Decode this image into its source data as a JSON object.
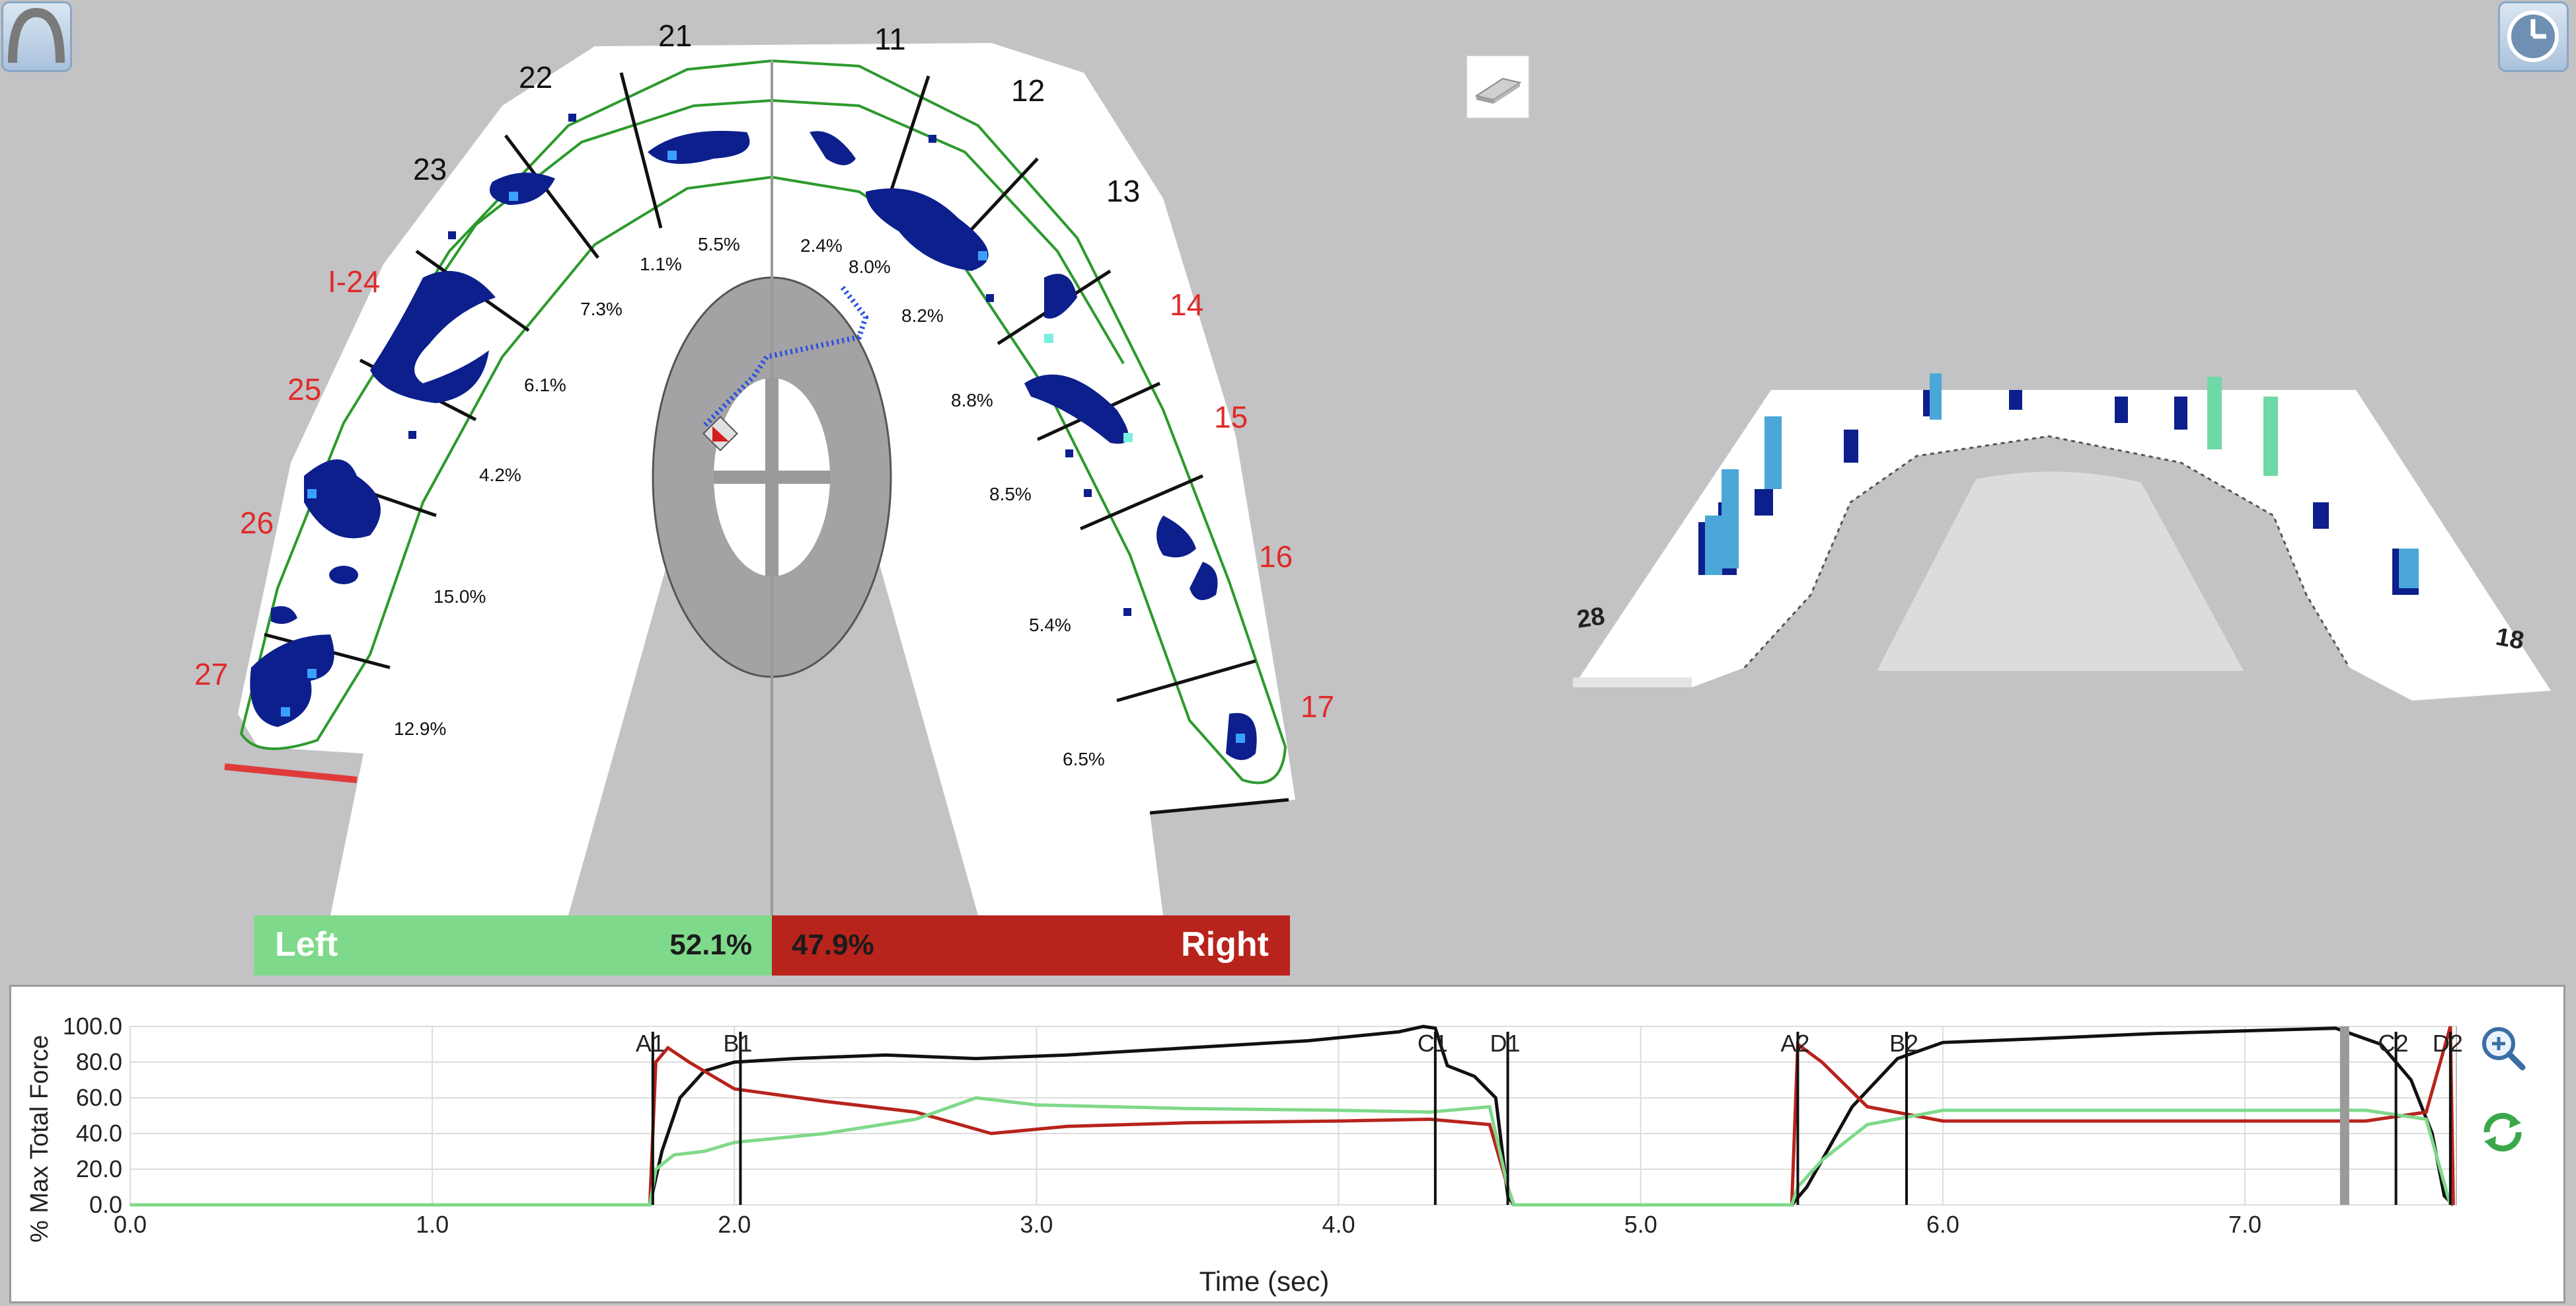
{
  "window": {
    "arch_button": "arch-icon",
    "clock_button": "clock-icon",
    "view_toggle_button": "3d-arch-icon"
  },
  "arch": {
    "tooth_labels": [
      {
        "id": "21",
        "color": "#111111"
      },
      {
        "id": "22",
        "color": "#111111"
      },
      {
        "id": "23",
        "color": "#111111"
      },
      {
        "id": "I-24",
        "color": "#e02a2a"
      },
      {
        "id": "25",
        "color": "#e02a2a"
      },
      {
        "id": "26",
        "color": "#e02a2a"
      },
      {
        "id": "27",
        "color": "#e02a2a"
      },
      {
        "id": "11",
        "color": "#111111"
      },
      {
        "id": "12",
        "color": "#111111"
      },
      {
        "id": "13",
        "color": "#111111"
      },
      {
        "id": "14",
        "color": "#e02a2a"
      },
      {
        "id": "15",
        "color": "#e02a2a"
      },
      {
        "id": "16",
        "color": "#e02a2a"
      },
      {
        "id": "17",
        "color": "#e02a2a"
      }
    ],
    "percentages": [
      "5.5%",
      "1.1%",
      "7.3%",
      "6.1%",
      "4.2%",
      "15.0%",
      "12.9%",
      "2.4%",
      "8.0%",
      "8.2%",
      "8.8%",
      "8.5%",
      "5.4%",
      "6.5%"
    ],
    "left_label": "Left",
    "left_value": "52.1%",
    "right_label": "Right",
    "right_value": "47.9%",
    "left_color": "#7fd98a",
    "right_color": "#b8231c"
  },
  "view3d": {
    "left_label": "28",
    "right_label": "18"
  },
  "chart_data": {
    "type": "line",
    "ylabel": "% Max Total Force",
    "xlabel": "Time (sec)",
    "xlim": [
      0.0,
      7.7
    ],
    "ylim": [
      0.0,
      100.0
    ],
    "x_ticks": [
      "0.0",
      "1.0",
      "2.0",
      "3.0",
      "4.0",
      "5.0",
      "6.0",
      "7.0"
    ],
    "y_ticks": [
      "0.0",
      "20.0",
      "40.0",
      "60.0",
      "80.0",
      "100.0"
    ],
    "grid": true,
    "series": [
      {
        "color": "#111111",
        "points": [
          [
            0,
            0
          ],
          [
            1.72,
            0
          ],
          [
            1.76,
            30
          ],
          [
            1.82,
            60
          ],
          [
            1.9,
            75
          ],
          [
            2.0,
            80
          ],
          [
            2.2,
            82
          ],
          [
            2.5,
            84
          ],
          [
            2.8,
            82
          ],
          [
            3.1,
            84
          ],
          [
            3.5,
            88
          ],
          [
            3.9,
            92
          ],
          [
            4.2,
            97
          ],
          [
            4.28,
            100
          ],
          [
            4.32,
            99
          ],
          [
            4.36,
            78
          ],
          [
            4.45,
            72
          ],
          [
            4.52,
            60
          ],
          [
            4.56,
            5
          ],
          [
            4.58,
            0
          ],
          [
            5.5,
            0
          ],
          [
            5.55,
            10
          ],
          [
            5.7,
            55
          ],
          [
            5.85,
            82
          ],
          [
            6.0,
            91
          ],
          [
            6.3,
            93
          ],
          [
            6.7,
            96
          ],
          [
            7.1,
            98
          ],
          [
            7.3,
            99
          ],
          [
            7.45,
            90
          ],
          [
            7.55,
            70
          ],
          [
            7.62,
            40
          ],
          [
            7.66,
            5
          ],
          [
            7.69,
            0
          ]
        ]
      },
      {
        "color": "#b8231c",
        "points": [
          [
            0,
            0
          ],
          [
            1.72,
            0
          ],
          [
            1.74,
            80
          ],
          [
            1.78,
            88
          ],
          [
            1.85,
            80
          ],
          [
            2.0,
            65
          ],
          [
            2.3,
            58
          ],
          [
            2.6,
            52
          ],
          [
            2.85,
            40
          ],
          [
            3.1,
            44
          ],
          [
            3.5,
            46
          ],
          [
            4.0,
            47
          ],
          [
            4.3,
            48
          ],
          [
            4.5,
            45
          ],
          [
            4.56,
            10
          ],
          [
            4.58,
            0
          ],
          [
            5.5,
            0
          ],
          [
            5.52,
            90
          ],
          [
            5.6,
            80
          ],
          [
            5.75,
            55
          ],
          [
            6.0,
            47
          ],
          [
            6.5,
            47
          ],
          [
            7.0,
            47
          ],
          [
            7.4,
            47
          ],
          [
            7.6,
            52
          ],
          [
            7.68,
            100
          ],
          [
            7.69,
            0
          ]
        ]
      },
      {
        "color": "#7fd98a",
        "points": [
          [
            0,
            0
          ],
          [
            1.72,
            0
          ],
          [
            1.74,
            20
          ],
          [
            1.8,
            28
          ],
          [
            1.9,
            30
          ],
          [
            2.0,
            35
          ],
          [
            2.3,
            40
          ],
          [
            2.6,
            48
          ],
          [
            2.8,
            60
          ],
          [
            3.0,
            56
          ],
          [
            3.5,
            54
          ],
          [
            4.0,
            53
          ],
          [
            4.3,
            52
          ],
          [
            4.5,
            55
          ],
          [
            4.56,
            10
          ],
          [
            4.58,
            0
          ],
          [
            5.5,
            0
          ],
          [
            5.52,
            10
          ],
          [
            5.6,
            25
          ],
          [
            5.75,
            45
          ],
          [
            6.0,
            53
          ],
          [
            6.5,
            53
          ],
          [
            7.0,
            53
          ],
          [
            7.4,
            53
          ],
          [
            7.6,
            48
          ],
          [
            7.68,
            0
          ]
        ]
      }
    ],
    "markers": [
      {
        "label": "A1",
        "x": 1.73
      },
      {
        "label": "B1",
        "x": 2.02
      },
      {
        "label": "C1",
        "x": 4.32
      },
      {
        "label": "D1",
        "x": 4.56
      },
      {
        "label": "A2",
        "x": 5.52
      },
      {
        "label": "B2",
        "x": 5.88
      },
      {
        "label": "C2",
        "x": 7.5
      },
      {
        "label": "D2",
        "x": 7.68
      }
    ],
    "cursor_x": 7.33
  }
}
